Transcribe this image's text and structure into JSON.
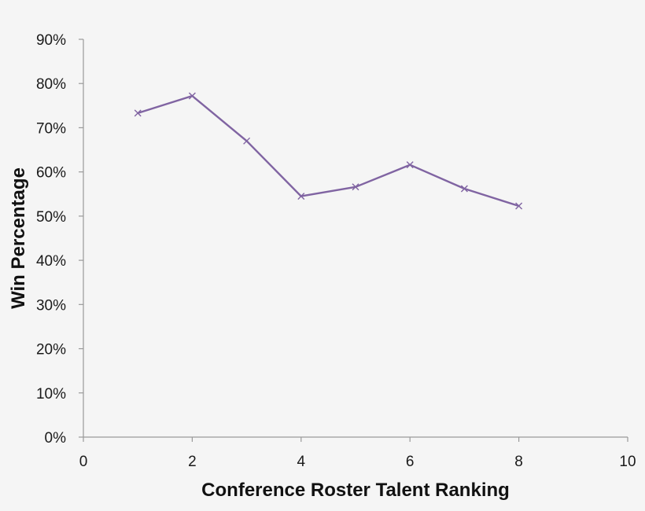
{
  "chart_data": {
    "type": "line",
    "xlabel": "Conference Roster Talent Ranking",
    "ylabel": "Win Percentage",
    "xlim": [
      0,
      10
    ],
    "ylim": [
      0,
      0.9
    ],
    "x_ticks": [
      0,
      2,
      4,
      6,
      8,
      10
    ],
    "x_tick_labels": [
      "0",
      "2",
      "4",
      "6",
      "8",
      "10"
    ],
    "y_ticks": [
      0,
      0.1,
      0.2,
      0.3,
      0.4,
      0.5,
      0.6,
      0.7,
      0.8,
      0.9
    ],
    "y_tick_labels": [
      "0%",
      "10%",
      "20%",
      "30%",
      "40%",
      "50%",
      "60%",
      "70%",
      "80%",
      "90%"
    ],
    "grid": false,
    "legend": "none",
    "series": [
      {
        "color": "#8064a2",
        "marker": "x",
        "x": [
          1,
          2,
          3,
          4,
          5,
          6,
          7,
          8
        ],
        "y": [
          0.733,
          0.772,
          0.67,
          0.545,
          0.566,
          0.616,
          0.562,
          0.523
        ]
      }
    ]
  }
}
